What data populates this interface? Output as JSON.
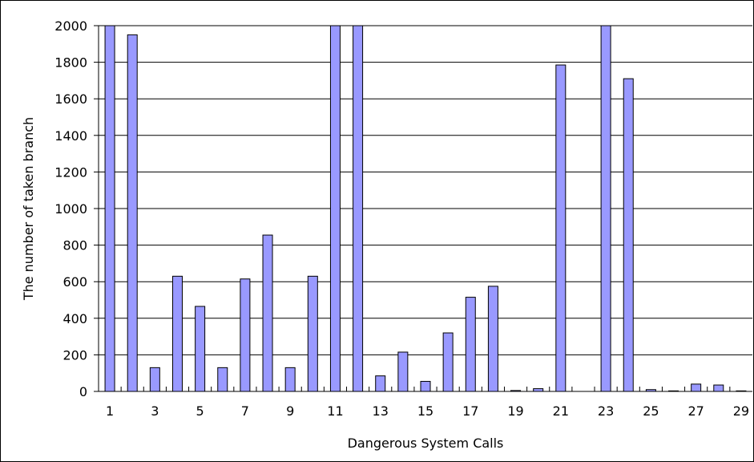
{
  "chart_data": {
    "type": "bar",
    "title": "",
    "xlabel": "Dangerous System Calls",
    "ylabel": "The number of taken branch",
    "ylim": [
      0,
      2000
    ],
    "yticks": [
      0,
      200,
      400,
      600,
      800,
      1000,
      1200,
      1400,
      1600,
      1800,
      2000
    ],
    "categories": [
      "1",
      "2",
      "3",
      "4",
      "5",
      "6",
      "7",
      "8",
      "9",
      "10",
      "11",
      "12",
      "13",
      "14",
      "15",
      "16",
      "17",
      "18",
      "19",
      "20",
      "21",
      "22",
      "23",
      "24",
      "25",
      "26",
      "27",
      "28",
      "29"
    ],
    "xtick_labels": [
      "1",
      "3",
      "5",
      "7",
      "9",
      "11",
      "13",
      "15",
      "17",
      "19",
      "21",
      "23",
      "25",
      "27",
      "29"
    ],
    "values": [
      2010,
      1950,
      130,
      630,
      465,
      130,
      615,
      855,
      130,
      630,
      2010,
      2010,
      85,
      215,
      55,
      320,
      515,
      575,
      5,
      15,
      1785,
      0,
      2010,
      1710,
      10,
      3,
      40,
      35,
      3
    ],
    "grid": true,
    "legend": "none",
    "colors": {
      "bar_fill": "#9999ff",
      "bar_stroke": "#000000",
      "grid": "#000000"
    }
  }
}
